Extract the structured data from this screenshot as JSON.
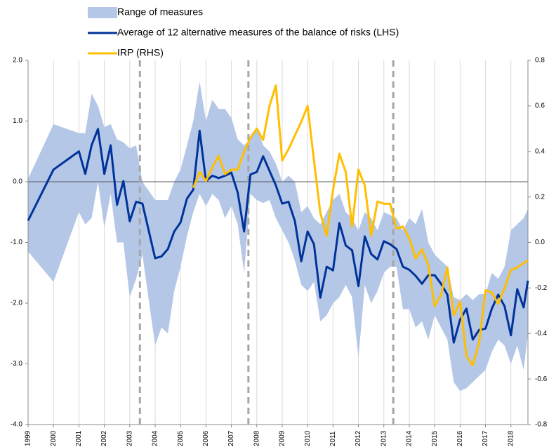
{
  "chart_data": {
    "type": "line",
    "xlim": [
      1999,
      2018.67
    ],
    "xticks": [
      1999,
      2000,
      2001,
      2002,
      2003,
      2004,
      2005,
      2006,
      2007,
      2008,
      2009,
      2010,
      2011,
      2012,
      2013,
      2014,
      2015,
      2016,
      2017,
      2018
    ],
    "xgrid": true,
    "ylim": [
      -4,
      2
    ],
    "yticks": [
      {
        "value": -4,
        "label": "-4.0"
      },
      {
        "value": -3,
        "label": "-3.0"
      },
      {
        "value": -2,
        "label": "-2.0"
      },
      {
        "value": -1,
        "label": "-1.0"
      },
      {
        "value": 0,
        "label": "0.0"
      },
      {
        "value": 1,
        "label": "1.0"
      },
      {
        "value": 2,
        "label": "2.0"
      }
    ],
    "y2lim": [
      -0.8,
      0.8
    ],
    "y2ticks": [
      {
        "value": -0.8,
        "label": "-0.8"
      },
      {
        "value": -0.6,
        "label": "-0.6"
      },
      {
        "value": -0.4,
        "label": "-0.4"
      },
      {
        "value": -0.2,
        "label": "-0.2"
      },
      {
        "value": 0,
        "label": "0.0"
      },
      {
        "value": 0.2,
        "label": "0.2"
      },
      {
        "value": 0.4,
        "label": "0.4"
      },
      {
        "value": 0.6,
        "label": "0.6"
      },
      {
        "value": 0.8,
        "label": "0.8"
      }
    ],
    "vlines": [
      2003.4,
      2007.67,
      2013.37
    ],
    "x": [
      1999,
      2000,
      2001,
      2001.25,
      2001.5,
      2001.75,
      2002,
      2002.25,
      2002.5,
      2002.75,
      2003,
      2003.25,
      2003.5,
      2004,
      2004.25,
      2004.5,
      2004.75,
      2005,
      2005.25,
      2005.5,
      2005.75,
      2006,
      2006.25,
      2006.5,
      2006.75,
      2007,
      2007.25,
      2007.5,
      2007.75,
      2008,
      2008.25,
      2008.5,
      2008.75,
      2009,
      2009.25,
      2009.5,
      2009.75,
      2010,
      2010.25,
      2010.5,
      2010.75,
      2011,
      2011.25,
      2011.5,
      2011.75,
      2012,
      2012.25,
      2012.5,
      2012.75,
      2013,
      2013.25,
      2013.5,
      2013.75,
      2014,
      2014.25,
      2014.5,
      2014.75,
      2015,
      2015.25,
      2015.5,
      2015.75,
      2016,
      2016.25,
      2016.5,
      2016.75,
      2017,
      2017.25,
      2017.5,
      2017.75,
      2018,
      2018.25,
      2018.5,
      2018.67
    ],
    "series": [
      {
        "name": "Range of measures",
        "type": "band",
        "color": "#b4c7e7",
        "upper": [
          0.05,
          0.95,
          0.8,
          0.8,
          1.45,
          1.25,
          0.9,
          0.95,
          0.7,
          0.65,
          0.55,
          0.6,
          0.0,
          -0.3,
          -0.3,
          -0.3,
          0.0,
          0.2,
          0.6,
          1.0,
          1.65,
          1.0,
          1.35,
          1.2,
          1.2,
          1.05,
          0.7,
          0.6,
          0.7,
          0.9,
          0.6,
          0.5,
          0.3,
          0.0,
          0.1,
          0.0,
          -0.5,
          -0.4,
          -0.6,
          -0.7,
          -0.5,
          -0.3,
          -0.2,
          -0.5,
          -0.6,
          -0.8,
          -0.5,
          -0.6,
          -0.8,
          -0.5,
          -0.55,
          -0.6,
          -0.8,
          -0.6,
          -0.7,
          -0.45,
          -1.0,
          -1.2,
          -1.3,
          -1.4,
          -1.9,
          -1.95,
          -1.85,
          -1.95,
          -1.85,
          -1.85,
          -1.5,
          -1.6,
          -1.4,
          -0.8,
          -0.7,
          -0.6,
          -0.45
        ],
        "lower": [
          -1.15,
          -1.65,
          -0.5,
          -0.7,
          -0.6,
          0.0,
          -0.75,
          -0.2,
          -1.0,
          -1.0,
          -1.9,
          -1.6,
          -1.2,
          -2.7,
          -2.4,
          -2.5,
          -1.8,
          -1.4,
          -0.9,
          -0.5,
          -0.2,
          -0.4,
          -0.2,
          -0.3,
          -0.6,
          -0.4,
          -0.7,
          -1.5,
          -0.2,
          -0.3,
          -0.35,
          -0.3,
          -0.6,
          -0.8,
          -1.0,
          -1.3,
          -1.7,
          -1.8,
          -1.65,
          -2.3,
          -2.2,
          -2.0,
          -1.9,
          -1.7,
          -1.9,
          -2.9,
          -1.7,
          -2.0,
          -1.8,
          -1.5,
          -1.4,
          -1.4,
          -2.1,
          -2.1,
          -2.4,
          -2.3,
          -2.6,
          -2.2,
          -2.4,
          -2.6,
          -3.3,
          -3.45,
          -3.4,
          -3.3,
          -3.2,
          -3.1,
          -2.8,
          -2.6,
          -2.7,
          -3.0,
          -2.7,
          -3.1,
          -2.5
        ]
      },
      {
        "name": "Average of 12 alternative measures of the balance of risks (LHS)",
        "color": "#003399",
        "values": [
          -0.64,
          0.2,
          0.5,
          0.13,
          0.6,
          0.87,
          0.13,
          0.6,
          -0.38,
          0.01,
          -0.65,
          -0.33,
          -0.36,
          -1.26,
          -1.23,
          -1.11,
          -0.82,
          -0.67,
          -0.28,
          -0.13,
          0.84,
          0.01,
          0.1,
          0.06,
          0.1,
          0.15,
          -0.18,
          -0.82,
          0.12,
          0.16,
          0.42,
          0.18,
          -0.06,
          -0.36,
          -0.33,
          -0.65,
          -1.31,
          -0.82,
          -1.03,
          -1.91,
          -1.4,
          -1.46,
          -0.68,
          -1.05,
          -1.13,
          -1.72,
          -0.9,
          -1.19,
          -1.28,
          -0.98,
          -1.03,
          -1.11,
          -1.4,
          -1.45,
          -1.55,
          -1.68,
          -1.54,
          -1.54,
          -1.68,
          -1.86,
          -2.65,
          -2.27,
          -2.09,
          -2.6,
          -2.44,
          -2.42,
          -2.09,
          -1.86,
          -2.05,
          -2.53,
          -1.77,
          -2.07,
          -1.63
        ]
      },
      {
        "name": "IRP (RHS)",
        "color": "#ffbf00",
        "axis": "y2",
        "x": [
          2005.5,
          2005.75,
          2006,
          2006.25,
          2006.5,
          2006.75,
          2007,
          2007.25,
          2007.5,
          2007.75,
          2008,
          2008.25,
          2008.5,
          2008.75,
          2009,
          2009.25,
          2009.5,
          2009.75,
          2010,
          2010.25,
          2010.5,
          2010.75,
          2011,
          2011.25,
          2011.5,
          2011.75,
          2012,
          2012.25,
          2012.5,
          2012.75,
          2013,
          2013.25,
          2013.5,
          2013.75,
          2014,
          2014.25,
          2014.5,
          2014.75,
          2015,
          2015.25,
          2015.5,
          2015.75,
          2016,
          2016.25,
          2016.5,
          2016.75,
          2017,
          2017.25,
          2017.5,
          2017.75,
          2018,
          2018.25,
          2018.5,
          2018.67
        ],
        "values": [
          0.24,
          0.31,
          0.27,
          0.33,
          0.38,
          0.3,
          0.32,
          0.32,
          0.4,
          0.46,
          0.5,
          0.45,
          0.6,
          0.69,
          0.36,
          0.41,
          0.47,
          0.53,
          0.6,
          0.36,
          0.13,
          0.03,
          0.23,
          0.39,
          0.31,
          0.07,
          0.32,
          0.25,
          0.03,
          0.18,
          0.17,
          0.17,
          0.06,
          0.07,
          0.02,
          -0.07,
          -0.03,
          -0.1,
          -0.28,
          -0.23,
          -0.11,
          -0.32,
          -0.26,
          -0.5,
          -0.54,
          -0.44,
          -0.21,
          -0.22,
          -0.27,
          -0.2,
          -0.12,
          -0.11,
          -0.09,
          -0.08
        ]
      }
    ]
  }
}
